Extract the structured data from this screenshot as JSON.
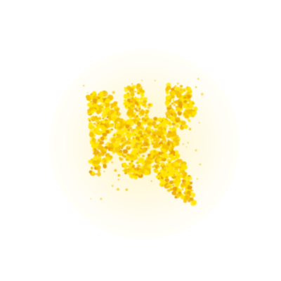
{
  "image": {
    "background_color": "#ffffff",
    "glow_color": "#fff1b8",
    "particle_colors": {
      "core": "#ffe600",
      "body": "#f5c400",
      "edge": "#e8a300"
    },
    "motif": "golden-glitter-butterfly-icon"
  }
}
